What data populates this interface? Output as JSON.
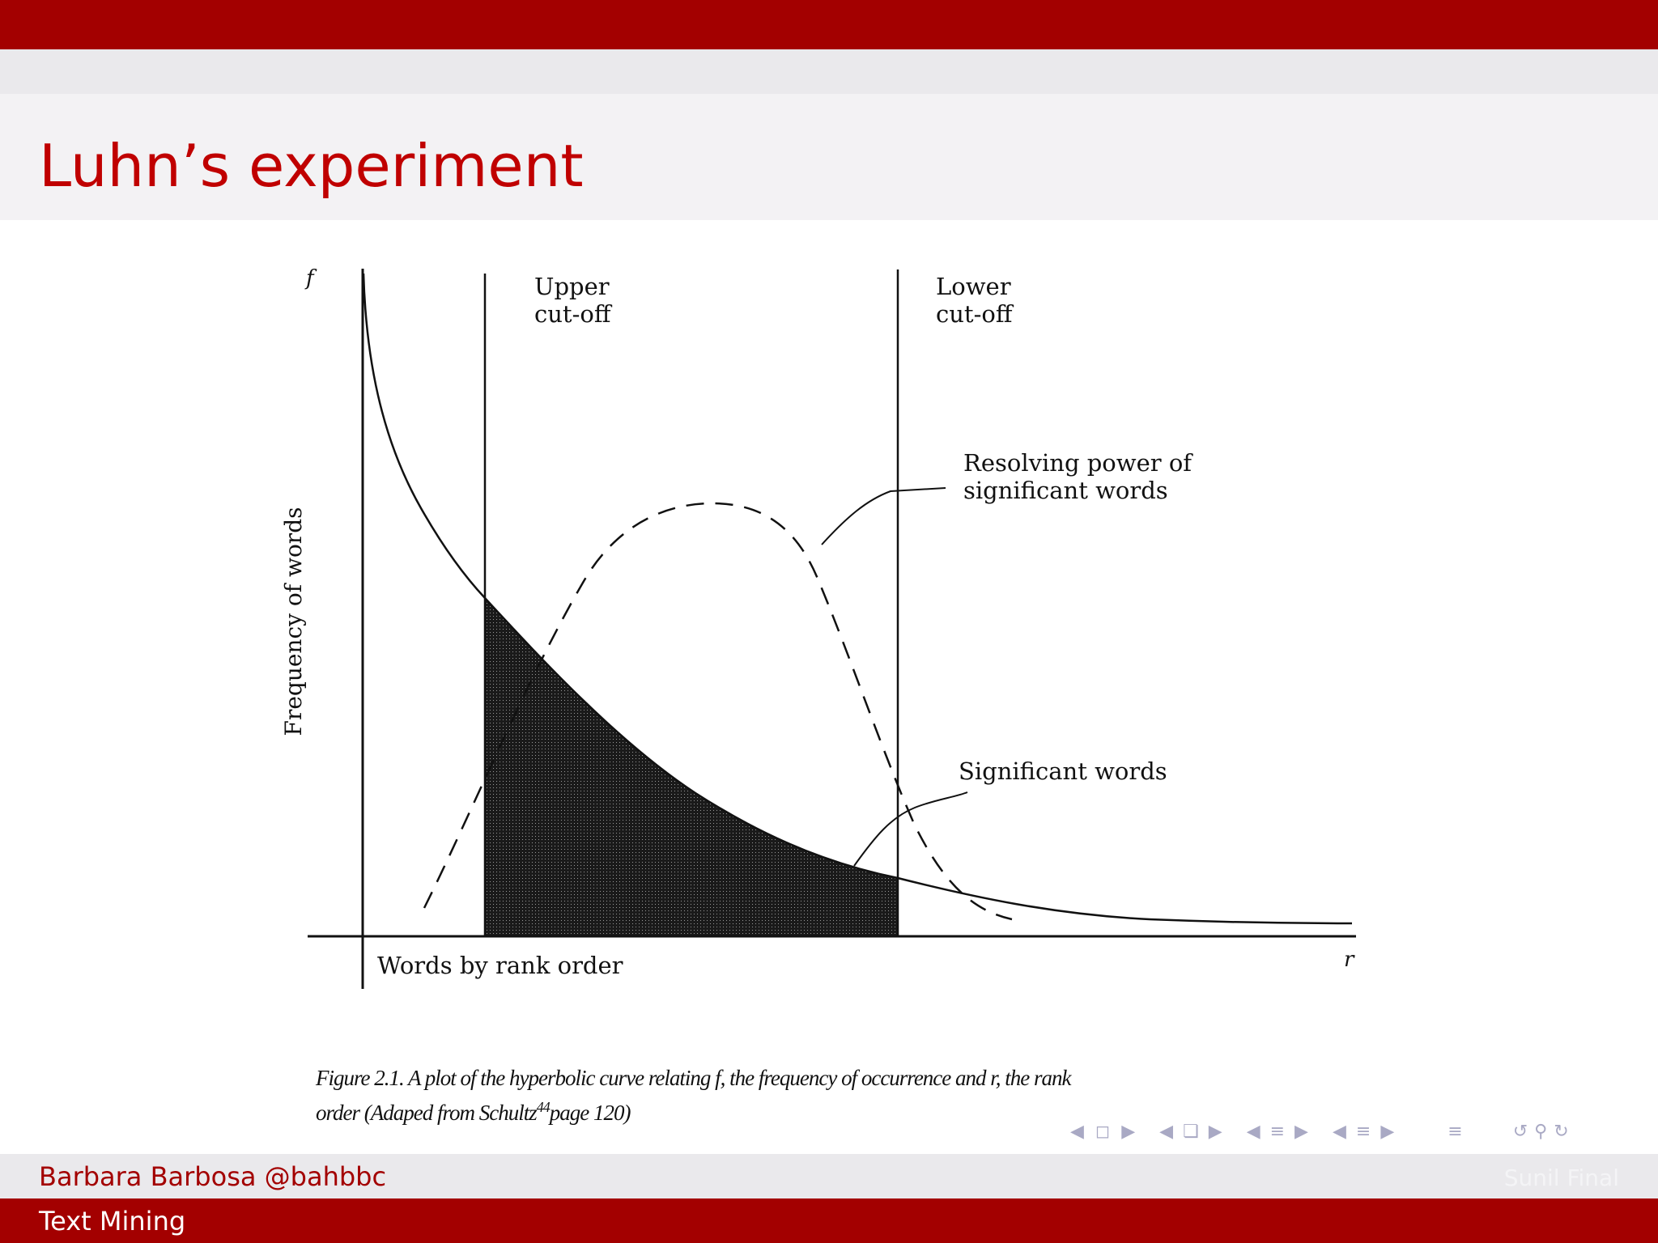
{
  "slide": {
    "title": "Luhn’s experiment"
  },
  "figure": {
    "corner_label_top": "f",
    "corner_label_right": "r",
    "upper_cutoff_line1": "Upper",
    "upper_cutoff_line2": "cut-off",
    "lower_cutoff_line1": "Lower",
    "lower_cutoff_line2": "cut-off",
    "resolving_line1": "Resolving power of",
    "resolving_line2": "significant words",
    "significant_words": "Significant words",
    "y_axis_label": "Frequency of words",
    "x_axis_label": "Words by rank order",
    "caption_line1": "Figure 2.1.   A plot of the hyperbolic curve relating f, the frequency of occurrence and r, the rank",
    "caption_line2": "order (Adaped from Schultz",
    "caption_superscript": "44",
    "caption_line2_end": "page 120)"
  },
  "navigation": {
    "icons": [
      "nav-left-arrow",
      "frame-icon",
      "nav-right-arrow",
      "nav-left-arrow",
      "subsection-icon",
      "nav-right-arrow",
      "nav-left-arrow",
      "section-icon",
      "nav-right-arrow",
      "nav-left-arrow",
      "subsection-list-icon",
      "nav-right-arrow",
      "outline-icon",
      "undo-icon",
      "search-icon",
      "redo-icon"
    ]
  },
  "footer": {
    "author": "Barbara Barbosa @bahbbc",
    "date": "Sunil Final",
    "course": "Text Mining"
  },
  "colors": {
    "theme_red": "#a30000",
    "title_red": "#c00000",
    "band_grey": "#eae9ec",
    "nav_icon": "#a9a9c4"
  }
}
